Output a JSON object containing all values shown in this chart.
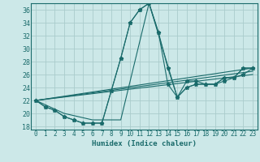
{
  "xlabel": "Humidex (Indice chaleur)",
  "ylabel": "",
  "bg_color": "#cce8e8",
  "grid_color": "#aacccc",
  "line_color": "#1a6b6b",
  "xlim": [
    -0.5,
    23.5
  ],
  "ylim": [
    17.5,
    37.0
  ],
  "xticks": [
    0,
    1,
    2,
    3,
    4,
    5,
    6,
    7,
    8,
    9,
    10,
    11,
    12,
    13,
    14,
    15,
    16,
    17,
    18,
    19,
    20,
    21,
    22,
    23
  ],
  "yticks": [
    18,
    20,
    22,
    24,
    26,
    28,
    30,
    32,
    34,
    36
  ],
  "lines": [
    {
      "x": [
        0,
        1,
        2,
        3,
        4,
        5,
        6,
        7,
        8,
        9,
        10,
        11,
        12,
        13,
        14,
        15,
        16,
        17,
        18,
        19,
        20,
        21,
        22,
        23
      ],
      "y": [
        22,
        21,
        20.5,
        19.5,
        19,
        18.5,
        18.5,
        18.5,
        23.5,
        28.5,
        34,
        36,
        37,
        32.5,
        27,
        22.5,
        25,
        25,
        24.5,
        24.5,
        25,
        25.5,
        27,
        27
      ],
      "marker": true
    },
    {
      "x": [
        0,
        1,
        2,
        3,
        4,
        5,
        6,
        7,
        8,
        9,
        10,
        11,
        12,
        13,
        14,
        15,
        16,
        17,
        18,
        19,
        20,
        21,
        22,
        23
      ],
      "y": [
        22,
        21,
        20.5,
        19.5,
        19,
        18.5,
        18.5,
        18.5,
        23.5,
        28.5,
        34,
        36,
        37,
        32.5,
        24.5,
        22.5,
        24,
        24.5,
        24.5,
        24.5,
        25.5,
        25.5,
        26,
        27
      ],
      "marker": true
    },
    {
      "x": [
        0,
        3,
        6,
        9,
        12,
        15,
        16,
        17,
        18,
        19,
        20,
        21,
        22,
        23
      ],
      "y": [
        22,
        20,
        19,
        19,
        37,
        22.5,
        24,
        24.5,
        24.5,
        24.5,
        25.5,
        25.5,
        27,
        27
      ],
      "marker": false
    },
    {
      "x": [
        0,
        23
      ],
      "y": [
        22,
        27
      ],
      "marker": false
    },
    {
      "x": [
        0,
        23
      ],
      "y": [
        22,
        26.5
      ],
      "marker": false
    },
    {
      "x": [
        0,
        23
      ],
      "y": [
        22,
        26.0
      ],
      "marker": false
    }
  ]
}
